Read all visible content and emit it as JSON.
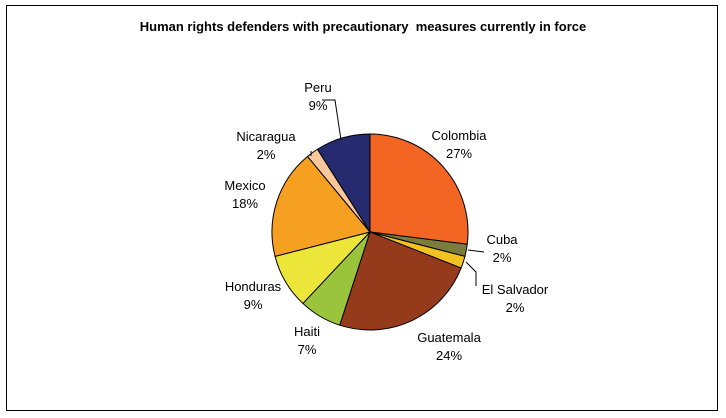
{
  "chart_data": {
    "type": "pie",
    "title": "Human rights defenders with precautionary  measures currently in force",
    "start_angle_deg": 0,
    "direction": "clockwise",
    "slices": [
      {
        "name": "Colombia",
        "value": 27,
        "label": "27%",
        "color": "#F26522"
      },
      {
        "name": "Cuba",
        "value": 2,
        "label": "2%",
        "color": "#7C7C3C"
      },
      {
        "name": "El Salvador",
        "value": 2,
        "label": "2%",
        "color": "#F2C122"
      },
      {
        "name": "Guatemala",
        "value": 24,
        "label": "24%",
        "color": "#963A1C"
      },
      {
        "name": "Haiti",
        "value": 7,
        "label": "7%",
        "color": "#9AC43C"
      },
      {
        "name": "Honduras",
        "value": 9,
        "label": "9%",
        "color": "#EDE63A"
      },
      {
        "name": "Mexico",
        "value": 18,
        "label": "18%",
        "color": "#F5A020"
      },
      {
        "name": "Nicaragua",
        "value": 2,
        "label": "2%",
        "color": "#F9C89A"
      },
      {
        "name": "Peru",
        "value": 9,
        "label": "9%",
        "color": "#262A6E"
      }
    ]
  }
}
